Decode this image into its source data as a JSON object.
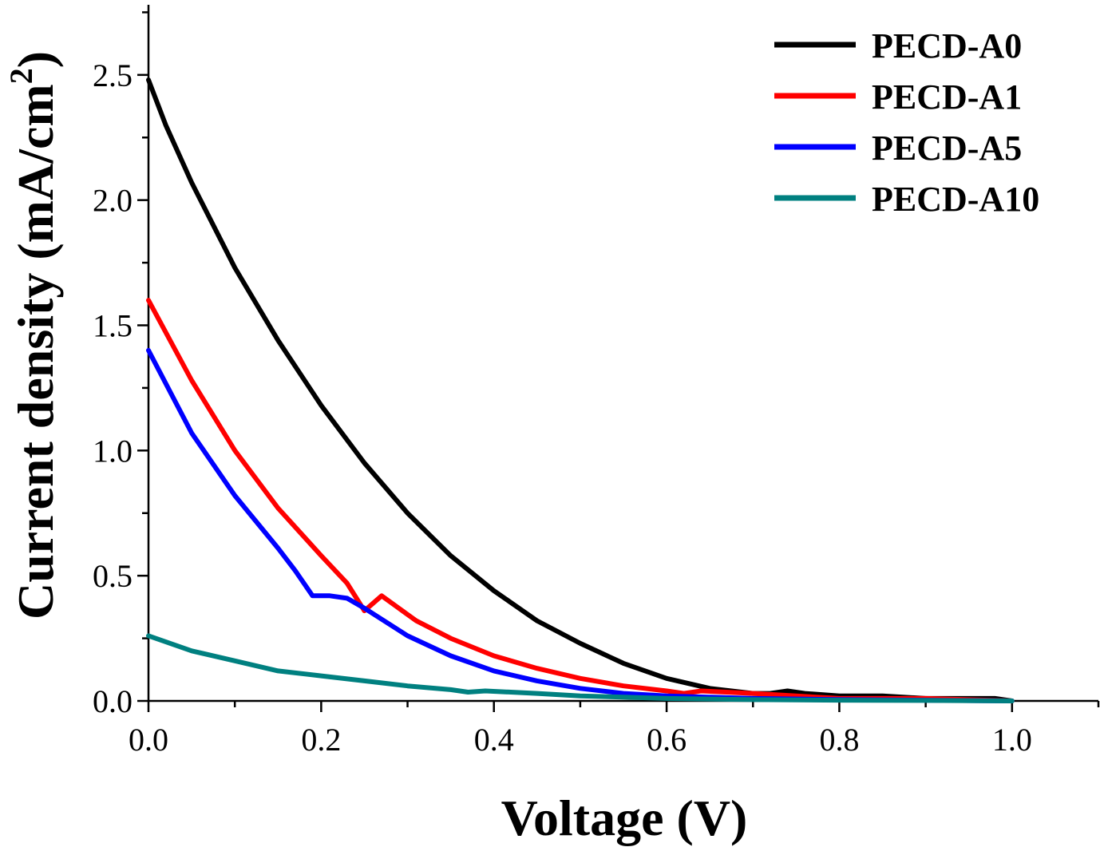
{
  "chart_data": {
    "type": "line",
    "xlabel": "Voltage (V)",
    "ylabel": "Current density (mA/cm",
    "ylabel_sup": "2",
    "ylabel_close": ")",
    "xlim": [
      0.0,
      1.1
    ],
    "ylim": [
      0.0,
      2.78
    ],
    "xticks": [
      0.0,
      0.2,
      0.4,
      0.6,
      0.8,
      1.0
    ],
    "xtick_labels": [
      "0.0",
      "0.2",
      "0.4",
      "0.6",
      "0.8",
      "1.0"
    ],
    "yticks": [
      0.0,
      0.5,
      1.0,
      1.5,
      2.0,
      2.5
    ],
    "ytick_labels": [
      "0.0",
      "0.5",
      "1.0",
      "1.5",
      "2.0",
      "2.5"
    ],
    "grid": false,
    "legend_position": "top-right",
    "series": [
      {
        "name": "PECD-A0",
        "color": "#000000",
        "x": [
          0.0,
          0.02,
          0.05,
          0.1,
          0.15,
          0.2,
          0.25,
          0.3,
          0.35,
          0.4,
          0.45,
          0.5,
          0.55,
          0.6,
          0.65,
          0.7,
          0.72,
          0.74,
          0.76,
          0.8,
          0.85,
          0.9,
          0.95,
          0.98,
          1.0
        ],
        "y": [
          2.48,
          2.3,
          2.07,
          1.73,
          1.44,
          1.18,
          0.95,
          0.75,
          0.58,
          0.44,
          0.32,
          0.23,
          0.15,
          0.09,
          0.05,
          0.03,
          0.03,
          0.04,
          0.03,
          0.02,
          0.02,
          0.01,
          0.01,
          0.01,
          0.0
        ]
      },
      {
        "name": "PECD-A1",
        "color": "#ff0000",
        "x": [
          0.0,
          0.05,
          0.1,
          0.15,
          0.2,
          0.23,
          0.25,
          0.27,
          0.29,
          0.31,
          0.35,
          0.4,
          0.45,
          0.5,
          0.55,
          0.6,
          0.62,
          0.64,
          0.7,
          0.8,
          0.9,
          1.0
        ],
        "y": [
          1.6,
          1.28,
          1.0,
          0.77,
          0.58,
          0.47,
          0.36,
          0.42,
          0.37,
          0.32,
          0.25,
          0.18,
          0.13,
          0.09,
          0.06,
          0.04,
          0.03,
          0.04,
          0.03,
          0.01,
          0.01,
          0.0
        ]
      },
      {
        "name": "PECD-A5",
        "color": "#0000ff",
        "x": [
          0.0,
          0.05,
          0.1,
          0.15,
          0.17,
          0.19,
          0.21,
          0.23,
          0.25,
          0.3,
          0.35,
          0.4,
          0.45,
          0.5,
          0.55,
          0.6,
          0.7,
          0.8,
          0.9,
          1.0
        ],
        "y": [
          1.4,
          1.07,
          0.82,
          0.61,
          0.52,
          0.42,
          0.42,
          0.41,
          0.37,
          0.26,
          0.18,
          0.12,
          0.08,
          0.05,
          0.03,
          0.02,
          0.01,
          0.005,
          0.003,
          0.0
        ]
      },
      {
        "name": "PECD-A10",
        "color": "#008080",
        "x": [
          0.0,
          0.05,
          0.1,
          0.15,
          0.2,
          0.25,
          0.3,
          0.35,
          0.37,
          0.39,
          0.45,
          0.5,
          0.55,
          0.6,
          0.7,
          0.8,
          0.9,
          1.0
        ],
        "y": [
          0.26,
          0.2,
          0.16,
          0.12,
          0.1,
          0.08,
          0.06,
          0.045,
          0.035,
          0.04,
          0.03,
          0.02,
          0.015,
          0.01,
          0.005,
          0.003,
          0.002,
          0.0
        ]
      }
    ]
  }
}
